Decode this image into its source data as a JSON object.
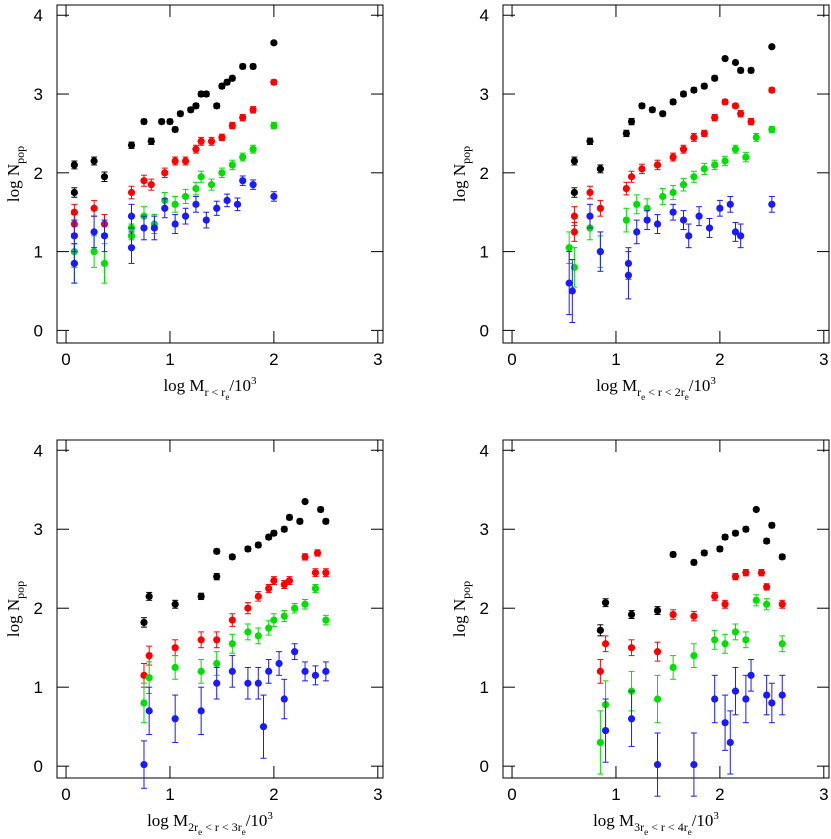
{
  "chart_data": [
    {
      "type": "scatter",
      "xlim": [
        -0.087,
        3.05
      ],
      "ylim": [
        -0.16,
        4.13
      ],
      "xticks": [
        0,
        1,
        2,
        3
      ],
      "yticks": [
        0,
        1,
        2,
        3,
        4
      ],
      "xlabel": [
        {
          "text": "log M"
        },
        {
          "sub": "r < r"
        },
        {
          "subsub": "e"
        },
        {
          "text": "/10"
        },
        {
          "sup": "3"
        }
      ],
      "ylabel": [
        {
          "text": "log N"
        },
        {
          "sub": "pop"
        }
      ],
      "series": [
        {
          "color": "#000000",
          "x": [
            0.08,
            0.08,
            0.27,
            0.37,
            0.63,
            0.75,
            0.82,
            0.92,
            1.0,
            1.05,
            1.1,
            1.2,
            1.25,
            1.3,
            1.35,
            1.45,
            1.5,
            1.55,
            1.6,
            1.7,
            1.8,
            2.0
          ],
          "values": [
            2.1,
            1.75,
            2.15,
            1.95,
            2.35,
            2.65,
            2.4,
            2.65,
            2.65,
            2.55,
            2.75,
            2.8,
            2.85,
            3.0,
            3.0,
            2.85,
            3.1,
            3.15,
            3.2,
            3.35,
            3.35,
            3.65
          ],
          "errors": [
            0.05,
            0.06,
            0.05,
            0.06,
            0.04,
            0.03,
            0.04,
            0.03,
            0.03,
            0.03,
            0.03,
            0.03,
            0.03,
            0.03,
            0.03,
            0.03,
            0.03,
            0.03,
            0.03,
            0.03,
            0.03,
            0.02
          ]
        },
        {
          "color": "#ff0000",
          "x": [
            0.08,
            0.08,
            0.27,
            0.37,
            0.63,
            0.75,
            0.82,
            0.95,
            1.05,
            1.15,
            1.25,
            1.3,
            1.4,
            1.5,
            1.6,
            1.7,
            1.8,
            2.0
          ],
          "values": [
            1.5,
            1.35,
            1.55,
            1.35,
            1.75,
            1.9,
            1.85,
            2.0,
            2.15,
            2.15,
            2.3,
            2.4,
            2.4,
            2.45,
            2.6,
            2.7,
            2.8,
            3.15
          ],
          "errors": [
            0.1,
            0.12,
            0.1,
            0.12,
            0.08,
            0.07,
            0.07,
            0.06,
            0.05,
            0.05,
            0.05,
            0.05,
            0.05,
            0.04,
            0.04,
            0.04,
            0.04,
            0.03
          ]
        },
        {
          "color": "#00e000",
          "x": [
            0.08,
            0.08,
            0.27,
            0.37,
            0.63,
            0.63,
            0.75,
            0.85,
            0.95,
            1.05,
            1.15,
            1.25,
            1.3,
            1.4,
            1.5,
            1.6,
            1.7,
            1.8,
            2.0
          ],
          "values": [
            1.0,
            0.85,
            1.0,
            0.85,
            1.3,
            1.2,
            1.45,
            1.35,
            1.65,
            1.6,
            1.7,
            1.8,
            1.95,
            1.85,
            2.0,
            2.1,
            2.2,
            2.3,
            2.6
          ],
          "errors": [
            0.2,
            0.25,
            0.2,
            0.25,
            0.15,
            0.15,
            0.12,
            0.12,
            0.1,
            0.1,
            0.09,
            0.08,
            0.07,
            0.07,
            0.06,
            0.06,
            0.05,
            0.05,
            0.04
          ]
        },
        {
          "color": "#1a1aff",
          "x": [
            0.08,
            0.08,
            0.27,
            0.37,
            0.63,
            0.63,
            0.75,
            0.85,
            0.95,
            1.05,
            1.15,
            1.25,
            1.35,
            1.45,
            1.55,
            1.65,
            1.7,
            1.8,
            2.0
          ],
          "values": [
            1.2,
            0.85,
            1.25,
            1.2,
            1.05,
            1.45,
            1.3,
            1.3,
            1.55,
            1.35,
            1.45,
            1.6,
            1.4,
            1.55,
            1.65,
            1.6,
            1.9,
            1.85,
            1.7
          ],
          "errors": [
            0.2,
            0.25,
            0.2,
            0.2,
            0.2,
            0.15,
            0.15,
            0.15,
            0.12,
            0.12,
            0.1,
            0.1,
            0.1,
            0.09,
            0.08,
            0.08,
            0.06,
            0.06,
            0.06
          ]
        }
      ]
    },
    {
      "type": "scatter",
      "xlim": [
        -0.087,
        3.05
      ],
      "ylim": [
        -0.16,
        4.13
      ],
      "xticks": [
        0,
        1,
        2,
        3
      ],
      "yticks": [
        0,
        1,
        2,
        3,
        4
      ],
      "xlabel": [
        {
          "text": "log M"
        },
        {
          "sub": "r"
        },
        {
          "subsub": "e"
        },
        {
          "sub": " < r < 2r"
        },
        {
          "subsub": "e"
        },
        {
          "text": "/10"
        },
        {
          "sup": "3"
        }
      ],
      "ylabel": [
        {
          "text": "log N"
        },
        {
          "sub": "pop"
        }
      ],
      "series": [
        {
          "color": "#000000",
          "x": [
            0.6,
            0.6,
            0.75,
            0.85,
            1.1,
            1.15,
            1.25,
            1.35,
            1.45,
            1.55,
            1.65,
            1.75,
            1.85,
            1.95,
            2.05,
            2.15,
            2.2,
            2.3,
            2.5
          ],
          "values": [
            1.75,
            2.15,
            2.4,
            2.05,
            2.5,
            2.65,
            2.85,
            2.8,
            2.75,
            2.9,
            3.0,
            3.05,
            3.1,
            3.2,
            3.45,
            3.4,
            3.3,
            3.3,
            3.6
          ],
          "errors": [
            0.06,
            0.05,
            0.04,
            0.05,
            0.04,
            0.04,
            0.03,
            0.03,
            0.03,
            0.03,
            0.03,
            0.03,
            0.03,
            0.03,
            0.02,
            0.02,
            0.03,
            0.03,
            0.02
          ]
        },
        {
          "color": "#ff0000",
          "x": [
            0.6,
            0.6,
            0.75,
            0.85,
            1.1,
            1.15,
            1.25,
            1.4,
            1.55,
            1.65,
            1.75,
            1.85,
            1.95,
            2.05,
            2.15,
            2.2,
            2.3,
            2.5
          ],
          "values": [
            1.45,
            1.25,
            1.75,
            1.55,
            1.8,
            1.95,
            2.05,
            2.1,
            2.2,
            2.3,
            2.45,
            2.5,
            2.7,
            2.9,
            2.85,
            2.75,
            2.65,
            3.05
          ],
          "errors": [
            0.12,
            0.12,
            0.08,
            0.1,
            0.08,
            0.07,
            0.06,
            0.06,
            0.05,
            0.05,
            0.05,
            0.04,
            0.04,
            0.03,
            0.03,
            0.04,
            0.04,
            0.03
          ]
        },
        {
          "color": "#00e000",
          "x": [
            0.55,
            0.6,
            0.75,
            0.85,
            1.1,
            1.2,
            1.3,
            1.45,
            1.55,
            1.65,
            1.75,
            1.85,
            1.95,
            2.05,
            2.15,
            2.25,
            2.35,
            2.5
          ],
          "values": [
            1.05,
            0.8,
            1.3,
            1.0,
            1.4,
            1.6,
            1.55,
            1.7,
            1.75,
            1.85,
            1.95,
            2.05,
            2.1,
            2.15,
            2.3,
            2.2,
            2.45,
            2.55
          ],
          "errors": [
            0.2,
            0.25,
            0.15,
            0.2,
            0.15,
            0.12,
            0.12,
            0.1,
            0.09,
            0.08,
            0.07,
            0.07,
            0.06,
            0.06,
            0.05,
            0.06,
            0.05,
            0.04
          ]
        },
        {
          "color": "#1a1aff",
          "x": [
            0.55,
            0.58,
            0.75,
            0.85,
            1.12,
            1.12,
            1.2,
            1.3,
            1.4,
            1.55,
            1.65,
            1.7,
            1.8,
            1.9,
            2.0,
            2.1,
            2.15,
            2.2,
            2.5
          ],
          "values": [
            0.6,
            0.5,
            1.45,
            1.0,
            0.7,
            0.85,
            1.25,
            1.4,
            1.35,
            1.5,
            1.4,
            1.2,
            1.45,
            1.3,
            1.55,
            1.6,
            1.25,
            1.2,
            1.6
          ],
          "errors": [
            0.4,
            0.4,
            0.15,
            0.25,
            0.3,
            0.2,
            0.15,
            0.12,
            0.12,
            0.1,
            0.12,
            0.15,
            0.12,
            0.12,
            0.1,
            0.1,
            0.12,
            0.15,
            0.1
          ]
        }
      ]
    },
    {
      "type": "scatter",
      "xlim": [
        -0.087,
        3.05
      ],
      "ylim": [
        -0.15,
        4.13
      ],
      "xticks": [
        0,
        1,
        2,
        3
      ],
      "yticks": [
        0,
        1,
        2,
        3,
        4
      ],
      "xlabel": [
        {
          "text": "log M"
        },
        {
          "sub": "2r"
        },
        {
          "subsub": "e"
        },
        {
          "sub": " < r < 3r"
        },
        {
          "subsub": "e"
        },
        {
          "text": "/10"
        },
        {
          "sup": "3"
        }
      ],
      "ylabel": [
        {
          "text": "log N"
        },
        {
          "sub": "pop"
        }
      ],
      "series": [
        {
          "color": "#000000",
          "x": [
            0.75,
            0.8,
            1.05,
            1.3,
            1.45,
            1.45,
            1.6,
            1.75,
            1.85,
            1.95,
            2.0,
            2.1,
            2.15,
            2.25,
            2.3,
            2.45,
            2.5
          ],
          "values": [
            1.82,
            2.15,
            2.05,
            2.15,
            2.4,
            2.72,
            2.65,
            2.75,
            2.8,
            2.9,
            2.95,
            3.0,
            3.15,
            3.1,
            3.35,
            3.25,
            3.1
          ],
          "errors": [
            0.06,
            0.05,
            0.05,
            0.04,
            0.04,
            0.03,
            0.03,
            0.03,
            0.03,
            0.03,
            0.03,
            0.03,
            0.03,
            0.03,
            0.02,
            0.03,
            0.03
          ]
        },
        {
          "color": "#ff0000",
          "x": [
            0.75,
            0.8,
            1.05,
            1.3,
            1.45,
            1.6,
            1.75,
            1.85,
            1.95,
            2.0,
            2.1,
            2.15,
            2.3,
            2.4,
            2.5,
            2.42
          ],
          "values": [
            1.15,
            1.4,
            1.5,
            1.6,
            1.6,
            1.85,
            2.0,
            2.15,
            2.25,
            2.35,
            2.3,
            2.35,
            2.65,
            2.45,
            2.45,
            2.7
          ],
          "errors": [
            0.15,
            0.12,
            0.1,
            0.1,
            0.1,
            0.08,
            0.07,
            0.06,
            0.05,
            0.05,
            0.05,
            0.05,
            0.04,
            0.05,
            0.05,
            0.04
          ]
        },
        {
          "color": "#00e000",
          "x": [
            0.75,
            0.8,
            1.05,
            1.3,
            1.45,
            1.6,
            1.75,
            1.85,
            1.95,
            2.0,
            2.1,
            2.2,
            2.3,
            2.4,
            2.5
          ],
          "values": [
            0.8,
            1.12,
            1.25,
            1.2,
            1.3,
            1.55,
            1.7,
            1.65,
            1.75,
            1.85,
            1.9,
            2.0,
            2.05,
            2.25,
            1.85
          ],
          "errors": [
            0.25,
            0.2,
            0.15,
            0.15,
            0.15,
            0.12,
            0.1,
            0.1,
            0.09,
            0.08,
            0.07,
            0.06,
            0.06,
            0.05,
            0.06
          ]
        },
        {
          "color": "#1a1aff",
          "x": [
            0.75,
            0.8,
            1.05,
            1.3,
            1.45,
            1.6,
            1.75,
            1.85,
            1.9,
            1.95,
            2.05,
            2.1,
            2.2,
            2.3,
            2.4,
            2.5
          ],
          "values": [
            0.02,
            0.7,
            0.6,
            0.7,
            1.05,
            1.2,
            1.05,
            1.05,
            0.5,
            1.2,
            1.3,
            0.85,
            1.45,
            1.2,
            1.15,
            1.2
          ],
          "errors": [
            0.3,
            0.3,
            0.3,
            0.3,
            0.2,
            0.2,
            0.2,
            0.2,
            0.4,
            0.15,
            0.15,
            0.25,
            0.1,
            0.12,
            0.12,
            0.12
          ]
        }
      ]
    },
    {
      "type": "scatter",
      "xlim": [
        -0.087,
        3.05
      ],
      "ylim": [
        -0.15,
        4.13
      ],
      "xticks": [
        0,
        1,
        2,
        3
      ],
      "yticks": [
        0,
        1,
        2,
        3,
        4
      ],
      "xlabel": [
        {
          "text": "log M"
        },
        {
          "sub": "3r"
        },
        {
          "subsub": "e"
        },
        {
          "sub": " < r < 4r"
        },
        {
          "subsub": "e"
        },
        {
          "text": "/10"
        },
        {
          "sup": "3"
        }
      ],
      "ylabel": [
        {
          "text": "log N"
        },
        {
          "sub": "pop"
        }
      ],
      "series": [
        {
          "color": "#000000",
          "x": [
            0.85,
            0.9,
            1.15,
            1.4,
            1.55,
            1.75,
            1.85,
            2.0,
            2.05,
            2.15,
            2.25,
            2.35,
            2.45,
            2.5,
            2.6
          ],
          "values": [
            1.72,
            2.07,
            1.92,
            1.97,
            2.68,
            2.58,
            2.7,
            2.75,
            2.9,
            2.95,
            3.0,
            3.25,
            2.85,
            3.05,
            2.65
          ],
          "errors": [
            0.07,
            0.05,
            0.05,
            0.05,
            0.03,
            0.03,
            0.03,
            0.03,
            0.03,
            0.03,
            0.03,
            0.02,
            0.03,
            0.03,
            0.03
          ]
        },
        {
          "color": "#ff0000",
          "x": [
            0.85,
            0.9,
            1.15,
            1.4,
            1.55,
            1.75,
            1.95,
            2.05,
            2.15,
            2.25,
            2.4,
            2.45,
            2.6
          ],
          "values": [
            1.2,
            1.55,
            1.5,
            1.45,
            1.92,
            1.9,
            2.15,
            2.05,
            2.4,
            2.45,
            2.45,
            2.27,
            2.05
          ],
          "errors": [
            0.15,
            0.1,
            0.1,
            0.12,
            0.06,
            0.06,
            0.05,
            0.05,
            0.04,
            0.04,
            0.04,
            0.04,
            0.05
          ]
        },
        {
          "color": "#00e000",
          "x": [
            0.85,
            0.9,
            1.15,
            1.4,
            1.55,
            1.75,
            1.95,
            2.05,
            2.15,
            2.25,
            2.35,
            2.45,
            2.6
          ],
          "values": [
            0.3,
            0.78,
            0.95,
            0.85,
            1.25,
            1.4,
            1.6,
            1.55,
            1.7,
            1.6,
            2.1,
            2.05,
            1.55
          ],
          "errors": [
            0.4,
            0.3,
            0.25,
            0.3,
            0.15,
            0.15,
            0.12,
            0.12,
            0.1,
            0.1,
            0.07,
            0.07,
            0.1
          ]
        },
        {
          "color": "#1a1aff",
          "x": [
            0.9,
            1.15,
            1.4,
            1.75,
            1.95,
            2.05,
            2.1,
            2.15,
            2.25,
            2.3,
            2.45,
            2.5,
            2.6
          ],
          "values": [
            0.45,
            0.6,
            0.02,
            0.02,
            0.85,
            0.55,
            0.3,
            0.95,
            0.85,
            1.15,
            0.9,
            0.8,
            0.9
          ],
          "errors": [
            0.4,
            0.35,
            0.4,
            0.4,
            0.3,
            0.35,
            0.4,
            0.3,
            0.3,
            0.2,
            0.25,
            0.25,
            0.25
          ]
        }
      ]
    }
  ]
}
